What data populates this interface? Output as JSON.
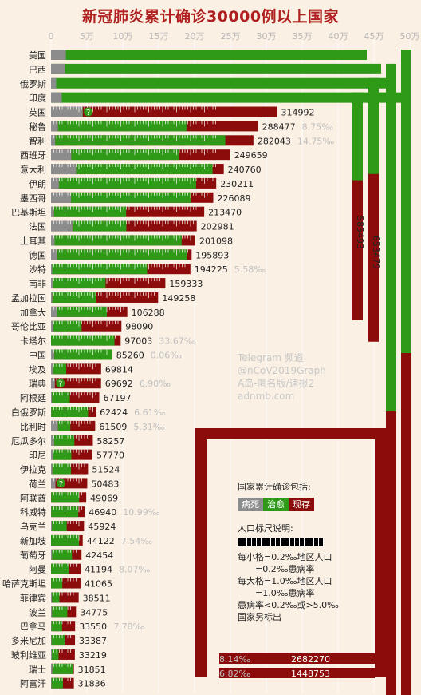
{
  "title": "新冠肺炎累计确诊30000例以上国家",
  "colors": {
    "death": "#8c8c8c",
    "recovered": "#2e9a18",
    "active": "#8c0c0c",
    "background": "#faf0e4",
    "rate": "#c0c0c0"
  },
  "chart_data": {
    "type": "bar",
    "stacked": true,
    "orientation": "horizontal",
    "xlim": [
      0,
      500000
    ],
    "x_ticks": [
      "0",
      "5万",
      "10万",
      "15万",
      "20万",
      "25万",
      "30万",
      "35万",
      "40万",
      "45万",
      "50万"
    ],
    "series_names": [
      "病死",
      "治愈",
      "现存"
    ],
    "rows": [
      {
        "name": "美国",
        "total": 2682270,
        "death_pct": 4.7,
        "rec_pct": 33.3,
        "rate": "8.14‰",
        "wrap": true,
        "bend": 3
      },
      {
        "name": "巴西",
        "total": 1448753,
        "death_pct": 4.2,
        "rec_pct": 60,
        "rate": "6.82‰",
        "wrap": true,
        "bend": 2
      },
      {
        "name": "俄罗斯",
        "total": 653479,
        "death_pct": 1.5,
        "rec_pct": 65,
        "wrap": true,
        "bend": 1
      },
      {
        "name": "印度",
        "total": 585493,
        "death_pct": 3.0,
        "rec_pct": 59,
        "wrap": true,
        "bend": 0
      },
      {
        "name": "英国",
        "total": 314992,
        "death_pct": 14.0,
        "rec_pct": 0.1,
        "unknown": true
      },
      {
        "name": "秘鲁",
        "total": 288477,
        "death_pct": 3.4,
        "rec_pct": 62,
        "rate": "8.75‰"
      },
      {
        "name": "智利",
        "total": 282043,
        "death_pct": 2.1,
        "rec_pct": 84,
        "rate": "14.75‰"
      },
      {
        "name": "西班牙",
        "total": 249659,
        "death_pct": 11.3,
        "rec_pct": 60
      },
      {
        "name": "意大利",
        "total": 240760,
        "death_pct": 14.5,
        "rec_pct": 79
      },
      {
        "name": "伊朗",
        "total": 230211,
        "death_pct": 4.8,
        "rec_pct": 83
      },
      {
        "name": "墨西哥",
        "total": 226089,
        "death_pct": 12.3,
        "rec_pct": 74
      },
      {
        "name": "巴基斯坦",
        "total": 213470,
        "death_pct": 2.0,
        "rec_pct": 47
      },
      {
        "name": "法国",
        "total": 202981,
        "death_pct": 14.7,
        "rec_pct": 37
      },
      {
        "name": "土耳其",
        "total": 201098,
        "death_pct": 2.5,
        "rec_pct": 88
      },
      {
        "name": "德国",
        "total": 195893,
        "death_pct": 4.6,
        "rec_pct": 92
      },
      {
        "name": "沙特",
        "total": 194225,
        "death_pct": 0.9,
        "rec_pct": 68,
        "rate": "5.58‰"
      },
      {
        "name": "南非",
        "total": 159333,
        "death_pct": 1.7,
        "rec_pct": 46
      },
      {
        "name": "孟加拉国",
        "total": 149258,
        "death_pct": 1.3,
        "rec_pct": 41
      },
      {
        "name": "加拿大",
        "total": 106288,
        "death_pct": 8.2,
        "rec_pct": 65
      },
      {
        "name": "哥伦比亚",
        "total": 98090,
        "death_pct": 3.4,
        "rec_pct": 40
      },
      {
        "name": "卡塔尔",
        "total": 97003,
        "death_pct": 0.1,
        "rec_pct": 91,
        "rate": "33.67‰"
      },
      {
        "name": "中国",
        "total": 85260,
        "death_pct": 5.5,
        "rec_pct": 94,
        "rate": "0.06‰"
      },
      {
        "name": "埃及",
        "total": 69814,
        "death_pct": 4.3,
        "rec_pct": 26
      },
      {
        "name": "瑞典",
        "total": 69692,
        "death_pct": 7.7,
        "rec_pct": 0.1,
        "unknown": true,
        "rate": "6.90‰"
      },
      {
        "name": "阿根廷",
        "total": 67197,
        "death_pct": 2.0,
        "rec_pct": 37
      },
      {
        "name": "白俄罗斯",
        "total": 62424,
        "death_pct": 0.7,
        "rec_pct": 82,
        "rate": "6.61‰"
      },
      {
        "name": "比利时",
        "total": 61509,
        "death_pct": 15.8,
        "rec_pct": 28,
        "rate": "5.31‰"
      },
      {
        "name": "厄瓜多尔",
        "total": 58257,
        "death_pct": 7.7,
        "rec_pct": 48
      },
      {
        "name": "印尼",
        "total": 57770,
        "death_pct": 5.0,
        "rec_pct": 44
      },
      {
        "name": "伊拉克",
        "total": 51524,
        "death_pct": 4.0,
        "rec_pct": 50
      },
      {
        "name": "荷兰",
        "total": 50483,
        "death_pct": 12.2,
        "rec_pct": 0.1,
        "unknown": true
      },
      {
        "name": "阿联酋",
        "total": 49069,
        "death_pct": 0.6,
        "rec_pct": 79
      },
      {
        "name": "科威特",
        "total": 46940,
        "death_pct": 0.8,
        "rec_pct": 80,
        "rate": "10.99‰"
      },
      {
        "name": "乌克兰",
        "total": 45924,
        "death_pct": 2.6,
        "rec_pct": 45
      },
      {
        "name": "新加坡",
        "total": 44122,
        "death_pct": 0.1,
        "rec_pct": 88,
        "rate": "7.54‰"
      },
      {
        "name": "葡萄牙",
        "total": 42454,
        "death_pct": 3.7,
        "rec_pct": 65
      },
      {
        "name": "阿曼",
        "total": 41194,
        "death_pct": 0.4,
        "rec_pct": 60,
        "rate": "8.07‰"
      },
      {
        "name": "哈萨克斯坦",
        "total": 41065,
        "death_pct": 0.5,
        "rec_pct": 38
      },
      {
        "name": "菲律宾",
        "total": 38511,
        "death_pct": 3.4,
        "rec_pct": 27
      },
      {
        "name": "波兰",
        "total": 34775,
        "death_pct": 4.2,
        "rec_pct": 61
      },
      {
        "name": "巴拿马",
        "total": 33550,
        "death_pct": 1.9,
        "rec_pct": 44,
        "rate": "7.78‰"
      },
      {
        "name": "多米尼加",
        "total": 33387,
        "death_pct": 2.3,
        "rec_pct": 55
      },
      {
        "name": "玻利维亚",
        "total": 33219,
        "death_pct": 3.5,
        "rec_pct": 28
      },
      {
        "name": "瑞士",
        "total": 31851,
        "death_pct": 6.1,
        "rec_pct": 90
      },
      {
        "name": "阿富汗",
        "total": 31836,
        "death_pct": 2.4,
        "rec_pct": 50
      }
    ]
  },
  "legend": {
    "heading": "国家累计确诊包括:",
    "items": [
      "病死",
      "治愈",
      "现存"
    ],
    "scale_heading": "人口标尺说明:",
    "notes": [
      "每小格=0.2‰地区人口",
      "　　=0.2‰患病率",
      "每大格=1.0‰地区人口",
      "　　=1.0‰患病率",
      "患病率<0.2‰或>5.0‰",
      "国家另标出"
    ]
  },
  "watermark": [
    "Telegram 频道",
    "@nCoV2019Graph",
    "A岛-匿名版/速报2",
    "adnmb.com"
  ]
}
